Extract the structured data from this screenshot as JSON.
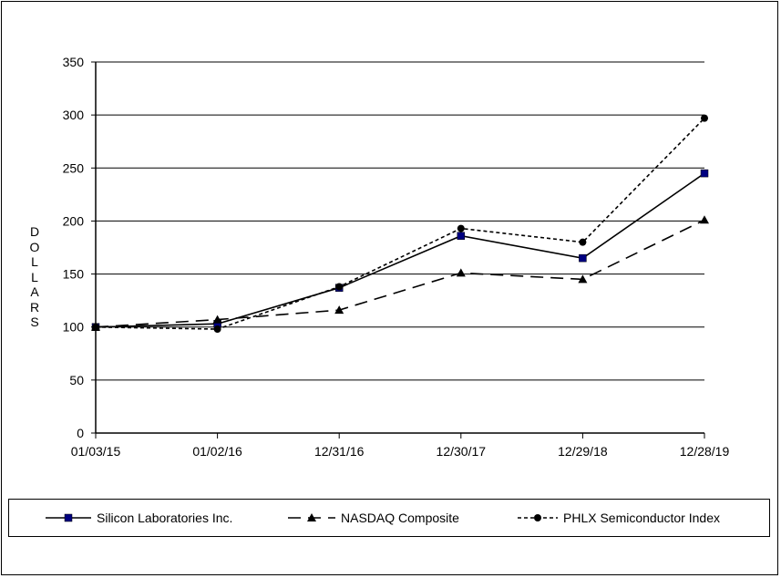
{
  "chart_data": {
    "type": "line",
    "title": "",
    "xlabel": "",
    "ylabel": "DOLLARS",
    "ylim": [
      0,
      350
    ],
    "yticks": [
      0,
      50,
      100,
      150,
      200,
      250,
      300,
      350
    ],
    "categories": [
      "01/03/15",
      "01/02/16",
      "12/31/16",
      "12/30/17",
      "12/29/18",
      "12/28/19"
    ],
    "grid": true,
    "legend_position": "bottom",
    "series": [
      {
        "name": "Silicon Laboratories Inc.",
        "values": [
          100,
          103,
          137,
          186,
          165,
          245
        ],
        "color": "#000000",
        "marker": "square",
        "marker_color": "#000080",
        "dash": "solid"
      },
      {
        "name": "NASDAQ Composite",
        "values": [
          100,
          107,
          116,
          151,
          145,
          201
        ],
        "color": "#000000",
        "marker": "triangle",
        "marker_color": "#000000",
        "dash": "long-dash"
      },
      {
        "name": "PHLX Semiconductor Index",
        "values": [
          100,
          98,
          138,
          193,
          180,
          297
        ],
        "color": "#000000",
        "marker": "circle",
        "marker_color": "#000000",
        "dash": "short-dash"
      }
    ]
  }
}
